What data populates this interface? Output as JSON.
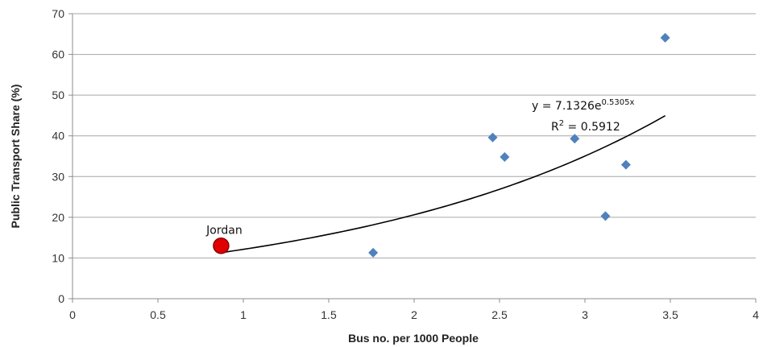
{
  "chart_data": {
    "type": "scatter",
    "title": "",
    "xlabel": "Bus no. per 1000 People",
    "ylabel": "Public Transport Share (%)",
    "xlim": [
      0,
      4
    ],
    "ylim": [
      0,
      70
    ],
    "xticks": [
      0,
      0.5,
      1,
      1.5,
      2,
      2.5,
      3,
      3.5,
      4
    ],
    "yticks": [
      0,
      10,
      20,
      30,
      40,
      50,
      60,
      70
    ],
    "xtick_labels": [
      "0",
      "0.5",
      "1",
      "1.5",
      "2",
      "2.5",
      "3",
      "3.5",
      "4"
    ],
    "ytick_labels": [
      "0",
      "10",
      "20",
      "30",
      "40",
      "50",
      "60",
      "70"
    ],
    "grid": "horizontal",
    "series": [
      {
        "marker": "diamond",
        "color": "#4f81bd",
        "points": [
          {
            "x": 1.76,
            "y": 11.3
          },
          {
            "x": 2.46,
            "y": 39.6
          },
          {
            "x": 2.53,
            "y": 34.8
          },
          {
            "x": 2.94,
            "y": 39.3
          },
          {
            "x": 3.12,
            "y": 20.3
          },
          {
            "x": 3.24,
            "y": 32.9
          },
          {
            "x": 3.47,
            "y": 64.1
          }
        ]
      }
    ],
    "highlight": {
      "label": "Jordan",
      "x": 0.87,
      "y": 13.0,
      "color": "#e00000"
    },
    "trendline": {
      "type": "exponential",
      "a": 7.1326,
      "b": 0.5305,
      "x_range": [
        0.87,
        3.47
      ],
      "equation_prefix": "y = 7.1326e",
      "equation_exponent": "0.5305x",
      "r2_prefix": "R",
      "r2_exponent": "2",
      "r2_suffix": " = 0.5912"
    }
  }
}
